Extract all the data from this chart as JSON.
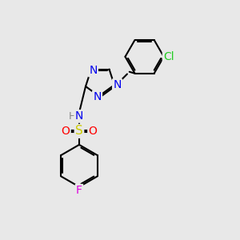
{
  "bg_color": "#e8e8e8",
  "bond_color": "#000000",
  "bond_width": 1.5,
  "font_size": 10,
  "atom_colors": {
    "N": "#0000ee",
    "O": "#ff0000",
    "S": "#cccc00",
    "F": "#dd00dd",
    "Cl": "#22cc22",
    "C": "#000000",
    "H": "#888888"
  },
  "figsize": [
    3.0,
    3.0
  ],
  "dpi": 100
}
